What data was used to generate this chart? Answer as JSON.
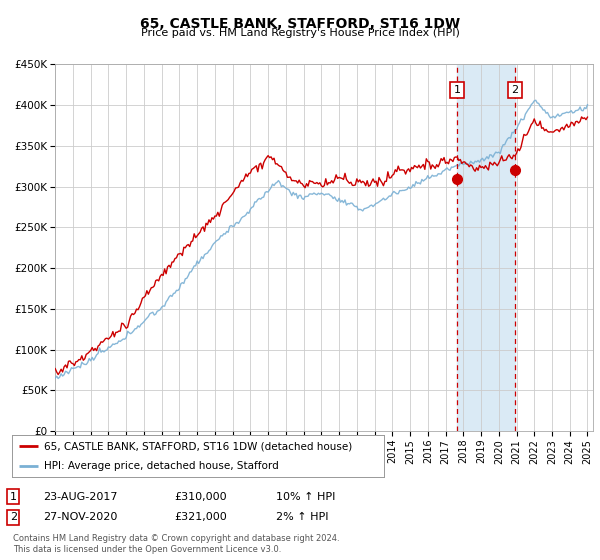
{
  "title": "65, CASTLE BANK, STAFFORD, ST16 1DW",
  "subtitle": "Price paid vs. HM Land Registry's House Price Index (HPI)",
  "legend_line1": "65, CASTLE BANK, STAFFORD, ST16 1DW (detached house)",
  "legend_line2": "HPI: Average price, detached house, Stafford",
  "footnote1": "Contains HM Land Registry data © Crown copyright and database right 2024.",
  "footnote2": "This data is licensed under the Open Government Licence v3.0.",
  "transaction1_date": "23-AUG-2017",
  "transaction1_price": "£310,000",
  "transaction1_hpi": "10% ↑ HPI",
  "transaction2_date": "27-NOV-2020",
  "transaction2_price": "£321,000",
  "transaction2_hpi": "2% ↑ HPI",
  "hpi_color": "#7ab0d4",
  "price_color": "#cc0000",
  "shade_color": "#daeaf5",
  "vline_color": "#cc0000",
  "grid_color": "#cccccc",
  "background_color": "#ffffff",
  "plot_bg": "#f8f8ff",
  "ylim": [
    0,
    450000
  ],
  "yticks": [
    0,
    50000,
    100000,
    150000,
    200000,
    250000,
    300000,
    350000,
    400000,
    450000
  ],
  "ytick_labels": [
    "£0",
    "£50K",
    "£100K",
    "£150K",
    "£200K",
    "£250K",
    "£300K",
    "£350K",
    "£400K",
    "£450K"
  ],
  "transaction1_year": 2017.64,
  "transaction2_year": 2020.92,
  "transaction1_price_val": 310000,
  "transaction2_price_val": 321000
}
